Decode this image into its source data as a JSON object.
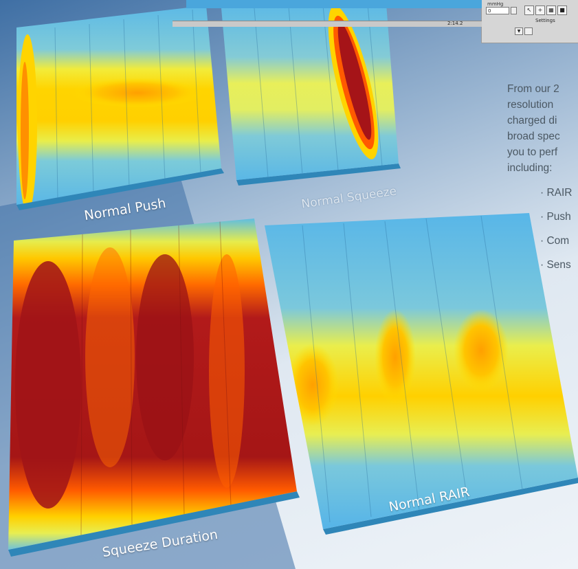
{
  "captions": {
    "normal_push": "Normal Push",
    "normal_squeeze": "Normal Squeeze",
    "squeeze_duration": "Squeeze Duration",
    "normal_rair": "Normal RAIR"
  },
  "body_text": {
    "lines": [
      "From our 2",
      "resolution",
      "charged di",
      "broad spec",
      "you to perf",
      "including:"
    ],
    "bullets": [
      "· RAIR",
      "· Push",
      "· Com",
      "· Sens"
    ]
  },
  "software_panel": {
    "label": "mmHg",
    "input_value": "0",
    "settings_label": "Settings",
    "time_readout": "2:14.2"
  },
  "colors": {
    "low": "#5ab8e8",
    "mid": "#ffe000",
    "high": "#ff5a00",
    "peak": "#a01020"
  }
}
